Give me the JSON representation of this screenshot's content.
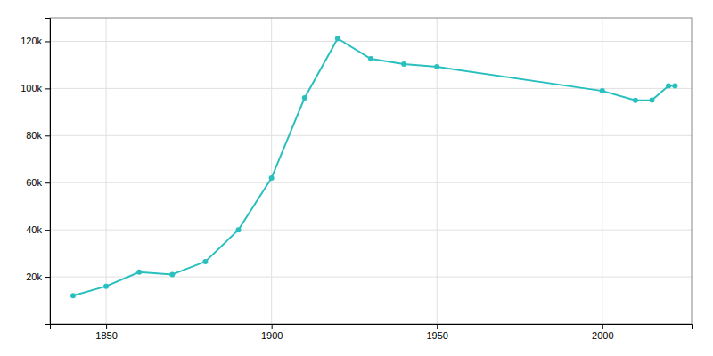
{
  "chart_data": {
    "type": "line",
    "x": [
      1840,
      1850,
      1860,
      1870,
      1880,
      1890,
      1900,
      1910,
      1920,
      1930,
      1940,
      1950,
      2000,
      2010,
      2015,
      2020,
      2022
    ],
    "values": [
      12000,
      16000,
      22000,
      21000,
      26500,
      40000,
      62000,
      96000,
      121217,
      112597,
      110341,
      109189,
      98966,
      94929,
      95072,
      101079,
      101079
    ],
    "color": "#2abfbf",
    "marker": "circle",
    "xlim": [
      1833,
      2027
    ],
    "xticks": [
      1850,
      1900,
      1950,
      2000
    ],
    "ylim": [
      0,
      130000
    ],
    "yticks": [
      {
        "value": 20000,
        "label": "20k"
      },
      {
        "value": 40000,
        "label": "40k"
      },
      {
        "value": 60000,
        "label": "60k"
      },
      {
        "value": 80000,
        "label": "80k"
      },
      {
        "value": 100000,
        "label": "100k"
      },
      {
        "value": 120000,
        "label": "120k"
      }
    ],
    "grid": true
  }
}
